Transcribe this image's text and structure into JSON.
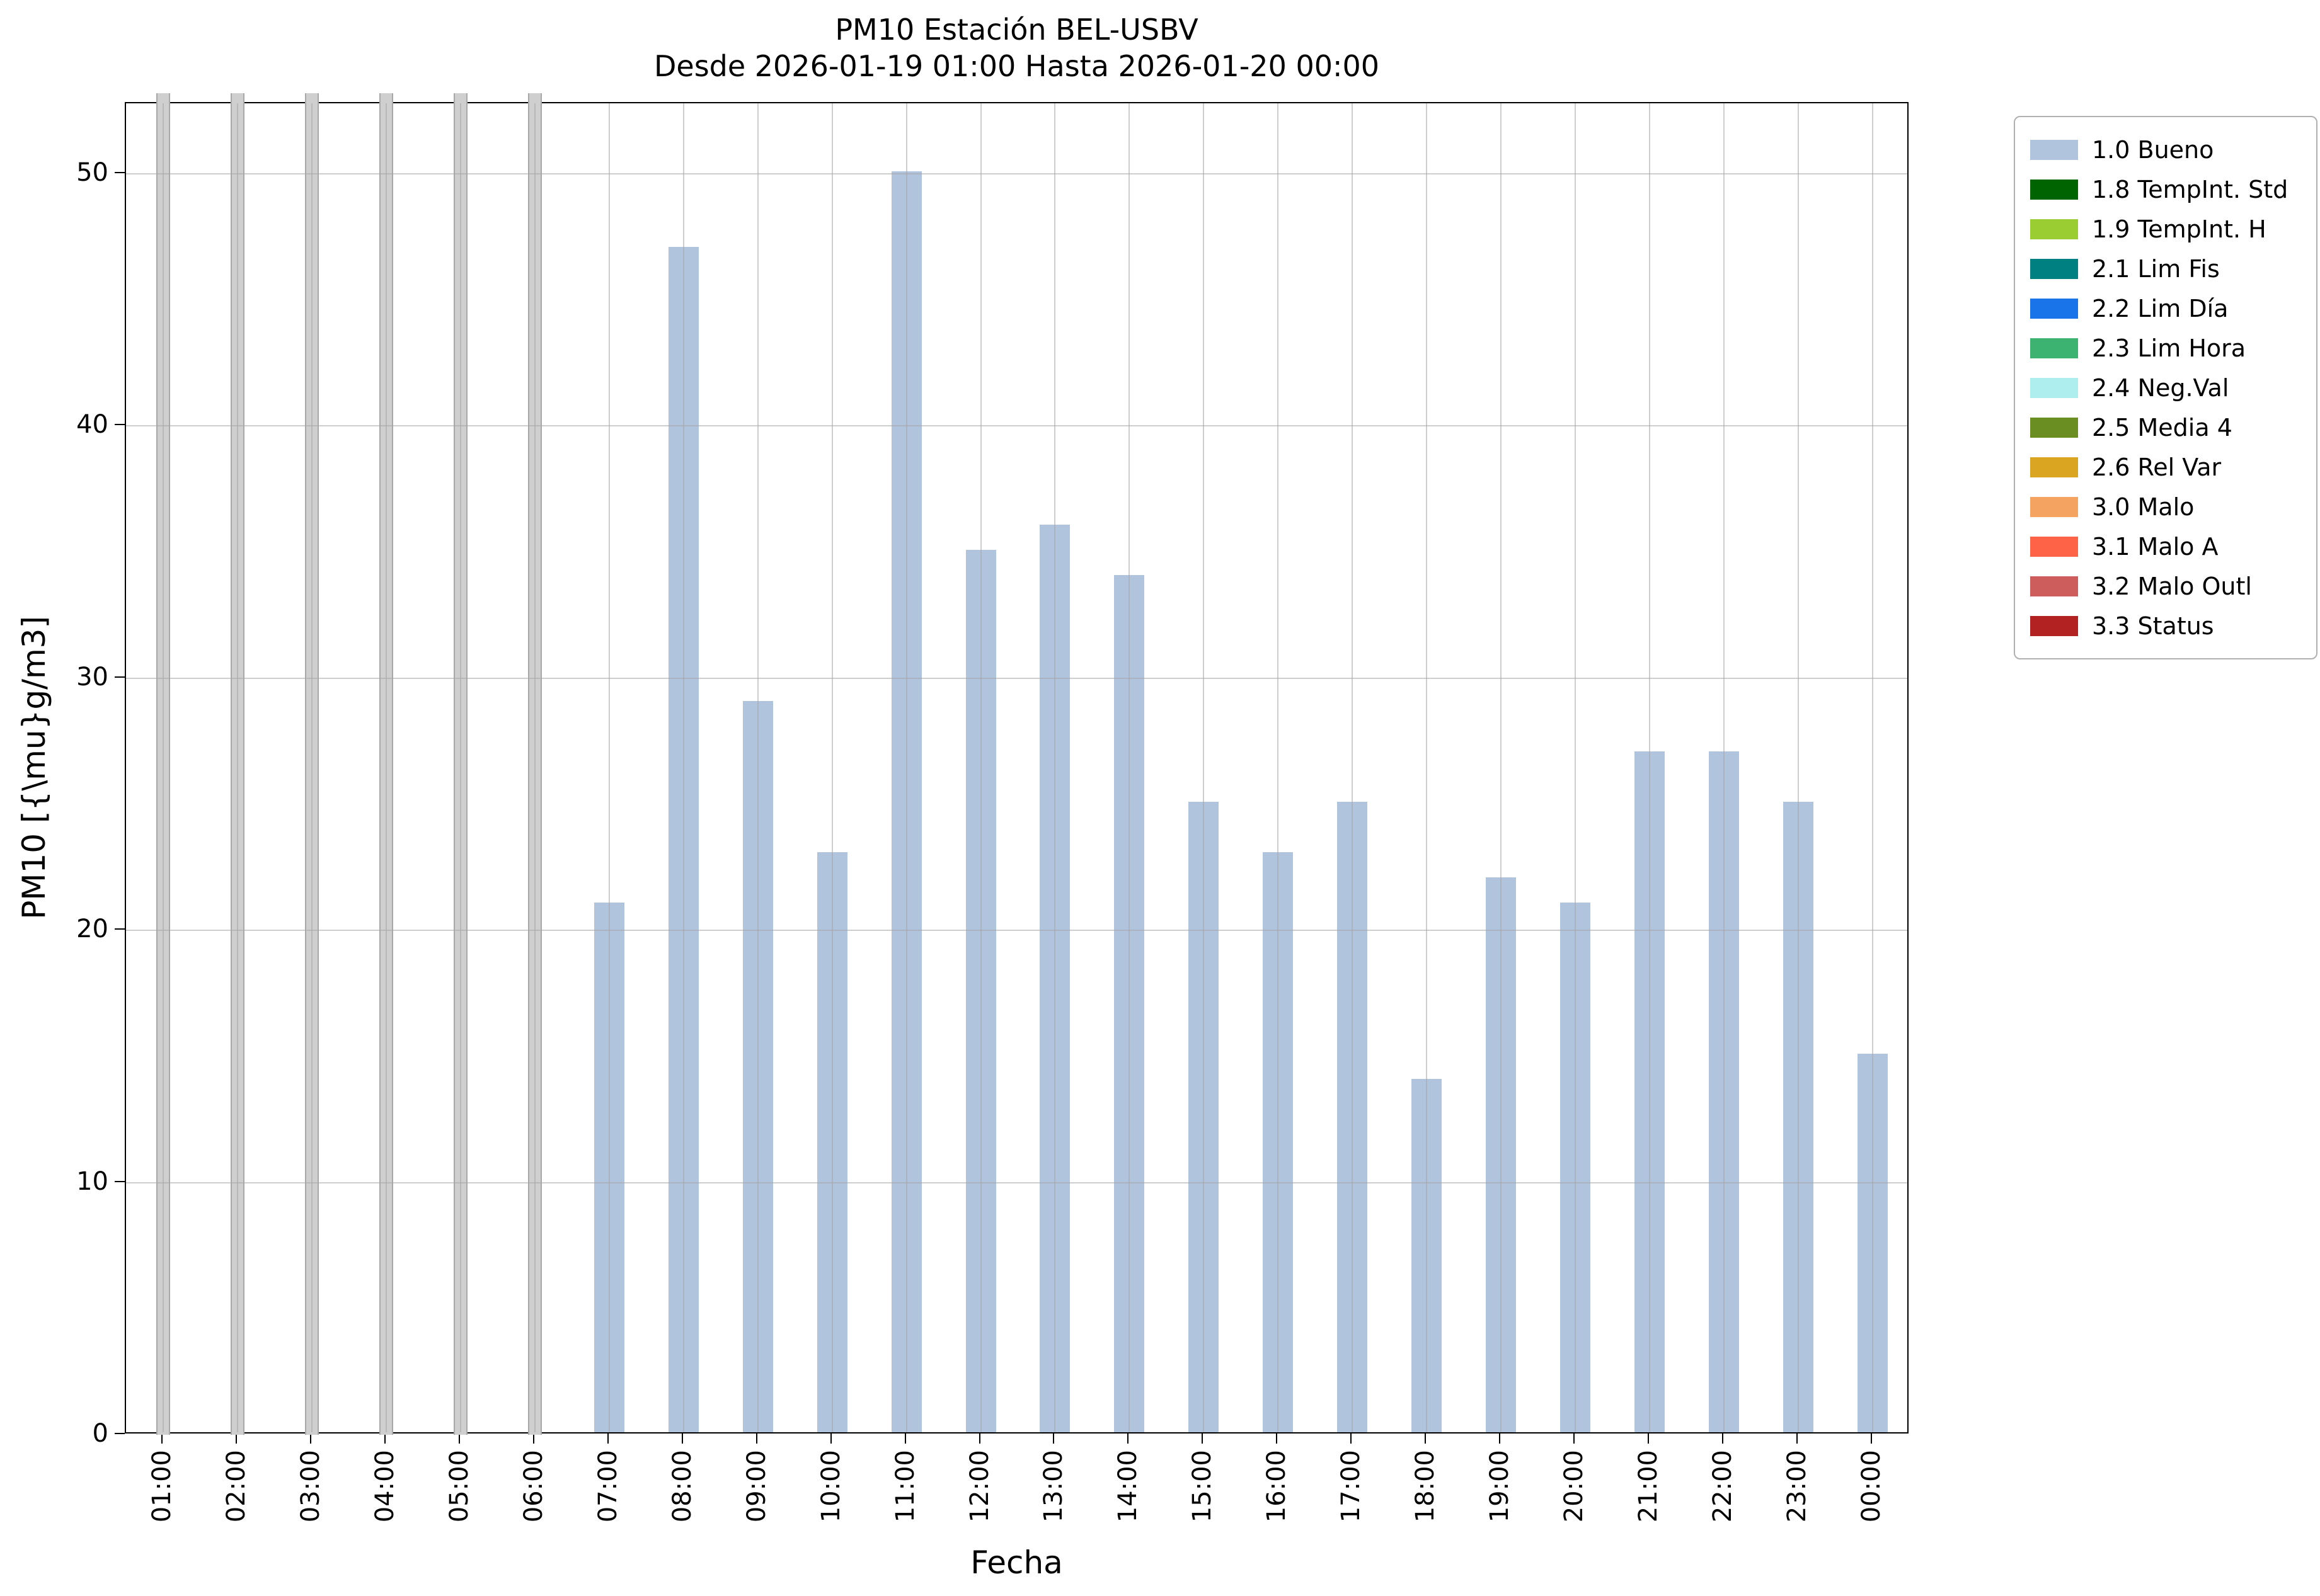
{
  "chart_data": {
    "type": "bar",
    "title": "PM10 Estación BEL-USBV",
    "subtitle": "Desde 2026-01-19 01:00 Hasta 2026-01-20 00:00",
    "xlabel": "Fecha",
    "ylabel": "PM10 [{\\mu}g/m3]",
    "categories": [
      "01:00",
      "02:00",
      "03:00",
      "04:00",
      "05:00",
      "06:00",
      "07:00",
      "08:00",
      "09:00",
      "10:00",
      "11:00",
      "12:00",
      "13:00",
      "14:00",
      "15:00",
      "16:00",
      "17:00",
      "18:00",
      "19:00",
      "20:00",
      "21:00",
      "22:00",
      "23:00",
      "00:00"
    ],
    "values": [
      null,
      null,
      null,
      null,
      null,
      null,
      21,
      47,
      29,
      23,
      50,
      35,
      36,
      34,
      25,
      23,
      25,
      14,
      22,
      21,
      27,
      27,
      25,
      15
    ],
    "series_name": "1.0 Bueno",
    "no_data_hours": [
      "01:00",
      "02:00",
      "03:00",
      "04:00",
      "05:00",
      "06:00"
    ],
    "ylim": [
      0,
      52.8
    ],
    "yticks": [
      0,
      10,
      20,
      30,
      40,
      50
    ],
    "grid": true,
    "legend_position": "upper-right-outside",
    "colors": {
      "bar": "#b0c4de",
      "no_data": "#cfcfcf",
      "no_data_edge": "#a8a8a8",
      "grid": "#a5a5a5"
    },
    "legend": [
      {
        "label": "1.0 Bueno",
        "color": "#b0c4de"
      },
      {
        "label": "1.8 TempInt. Std",
        "color": "#006400"
      },
      {
        "label": "1.9 TempInt. H",
        "color": "#9acd32"
      },
      {
        "label": "2.1 Lim Fis",
        "color": "#008080"
      },
      {
        "label": "2.2 Lim Día",
        "color": "#1874e8"
      },
      {
        "label": "2.3 Lim Hora",
        "color": "#3cb371"
      },
      {
        "label": "2.4 Neg.Val",
        "color": "#afeeee"
      },
      {
        "label": "2.5 Media 4",
        "color": "#6b8e23"
      },
      {
        "label": "2.6 Rel Var",
        "color": "#daa520"
      },
      {
        "label": "3.0 Malo",
        "color": "#f4a460"
      },
      {
        "label": "3.1 Malo A",
        "color": "#ff6347"
      },
      {
        "label": "3.2 Malo Outl",
        "color": "#cd5c5c"
      },
      {
        "label": "3.3 Status",
        "color": "#b22222"
      }
    ]
  }
}
